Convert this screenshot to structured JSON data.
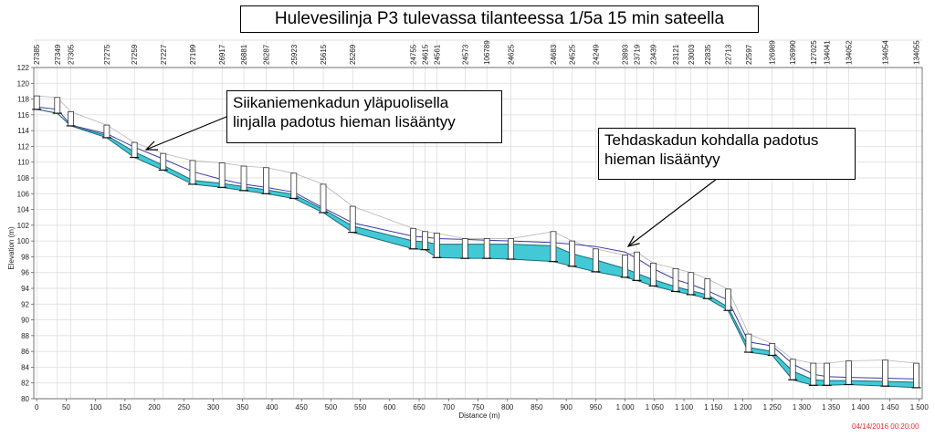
{
  "title": "Hulevesilinja P3 tulevassa tilanteessa 1/5a 15 min sateella",
  "callouts": [
    {
      "text": "Siikaniemenkadun yläpuolisella linjalla padotus hieman lisääntyy"
    },
    {
      "text": "Tehdaskadun kohdalla padotus hieman lisääntyy"
    }
  ],
  "timestamp": "04/14/2016 00:20:00",
  "colors": {
    "water": "#43c9d6",
    "pipe": "#1e6a78",
    "hgl": "#3a3aa8",
    "ground": "#b5b5b5",
    "grid": "#d9d9d9",
    "arrow": "#000000"
  },
  "chart_data": {
    "type": "line",
    "xlabel": "Distance (m)",
    "ylabel": "Elevation (m)",
    "xlim": [
      -5,
      1505
    ],
    "ylim": [
      80,
      122
    ],
    "x_ticks": [
      {
        "v": 0,
        "label": "0"
      },
      {
        "v": 50,
        "label": "50"
      },
      {
        "v": 100,
        "label": "100"
      },
      {
        "v": 150,
        "label": "150"
      },
      {
        "v": 200,
        "label": "200"
      },
      {
        "v": 250,
        "label": "250"
      },
      {
        "v": 300,
        "label": "300"
      },
      {
        "v": 350,
        "label": "350"
      },
      {
        "v": 400,
        "label": "400"
      },
      {
        "v": 450,
        "label": "450"
      },
      {
        "v": 500,
        "label": "500"
      },
      {
        "v": 550,
        "label": "550"
      },
      {
        "v": 600,
        "label": "600"
      },
      {
        "v": 650,
        "label": "650"
      },
      {
        "v": 700,
        "label": "700"
      },
      {
        "v": 750,
        "label": "750"
      },
      {
        "v": 800,
        "label": "800"
      },
      {
        "v": 850,
        "label": "850"
      },
      {
        "v": 900,
        "label": "900"
      },
      {
        "v": 950,
        "label": "950"
      },
      {
        "v": 1000,
        "label": "1 000"
      },
      {
        "v": 1050,
        "label": "1 050"
      },
      {
        "v": 1100,
        "label": "1 100"
      },
      {
        "v": 1150,
        "label": "1 150"
      },
      {
        "v": 1200,
        "label": "1 200"
      },
      {
        "v": 1250,
        "label": "1 250"
      },
      {
        "v": 1300,
        "label": "1 300"
      },
      {
        "v": 1350,
        "label": "1 350"
      },
      {
        "v": 1400,
        "label": "1 400"
      },
      {
        "v": 1450,
        "label": "1 450"
      },
      {
        "v": 1500,
        "label": "1 500"
      }
    ],
    "y_ticks": [
      80,
      82,
      84,
      86,
      88,
      90,
      92,
      94,
      96,
      98,
      100,
      102,
      104,
      106,
      108,
      110,
      112,
      114,
      116,
      118,
      120,
      122
    ],
    "nodes": [
      {
        "id": "27385",
        "x": 0
      },
      {
        "id": "27349",
        "x": 35
      },
      {
        "id": "27305",
        "x": 58
      },
      {
        "id": "27275",
        "x": 119
      },
      {
        "id": "27259",
        "x": 166
      },
      {
        "id": "27227",
        "x": 215
      },
      {
        "id": "27199",
        "x": 265
      },
      {
        "id": "26917",
        "x": 315
      },
      {
        "id": "26881",
        "x": 352
      },
      {
        "id": "26287",
        "x": 390
      },
      {
        "id": "25923",
        "x": 437
      },
      {
        "id": "25615",
        "x": 487
      },
      {
        "id": "25269",
        "x": 537
      },
      {
        "id": "24755",
        "x": 640
      },
      {
        "id": "24615",
        "x": 660
      },
      {
        "id": "24561",
        "x": 680
      },
      {
        "id": "24573",
        "x": 728
      },
      {
        "id": "106789",
        "x": 765
      },
      {
        "id": "24625",
        "x": 806
      },
      {
        "id": "24683",
        "x": 878
      },
      {
        "id": "24525",
        "x": 910
      },
      {
        "id": "24249",
        "x": 950
      },
      {
        "id": "23893",
        "x": 1000
      },
      {
        "id": "23719",
        "x": 1020
      },
      {
        "id": "23439",
        "x": 1048
      },
      {
        "id": "23121",
        "x": 1086
      },
      {
        "id": "23003",
        "x": 1112
      },
      {
        "id": "22835",
        "x": 1140
      },
      {
        "id": "22713",
        "x": 1175
      },
      {
        "id": "22597",
        "x": 1210
      },
      {
        "id": "126989",
        "x": 1250
      },
      {
        "id": "126990",
        "x": 1285
      },
      {
        "id": "127025",
        "x": 1320
      },
      {
        "id": "134041",
        "x": 1343
      },
      {
        "id": "134052",
        "x": 1380
      },
      {
        "id": "134054",
        "x": 1442
      },
      {
        "id": "134055",
        "x": 1495
      }
    ],
    "series": [
      {
        "points": [
          [
            0,
            116.7
          ],
          [
            35,
            116.2
          ],
          [
            58,
            114.6
          ],
          [
            119,
            113.1
          ],
          [
            166,
            110.6
          ],
          [
            215,
            109.0
          ],
          [
            265,
            107.2
          ],
          [
            315,
            106.8
          ],
          [
            352,
            106.4
          ],
          [
            390,
            106.0
          ],
          [
            437,
            105.4
          ],
          [
            487,
            103.6
          ],
          [
            537,
            101.1
          ],
          [
            640,
            99.0
          ],
          [
            660,
            98.9
          ],
          [
            680,
            97.9
          ],
          [
            728,
            97.8
          ],
          [
            765,
            97.8
          ],
          [
            806,
            97.7
          ],
          [
            878,
            97.4
          ],
          [
            910,
            96.8
          ],
          [
            950,
            96.1
          ],
          [
            1000,
            95.4
          ],
          [
            1020,
            95.0
          ],
          [
            1048,
            94.3
          ],
          [
            1086,
            93.6
          ],
          [
            1112,
            93.2
          ],
          [
            1140,
            92.7
          ],
          [
            1175,
            91.2
          ],
          [
            1210,
            85.9
          ],
          [
            1250,
            85.5
          ],
          [
            1285,
            82.4
          ],
          [
            1320,
            81.7
          ],
          [
            1343,
            81.7
          ],
          [
            1380,
            81.8
          ],
          [
            1442,
            81.6
          ],
          [
            1495,
            81.4
          ]
        ]
      },
      {
        "points": [
          [
            0,
            116.7
          ],
          [
            35,
            116.2
          ],
          [
            58,
            114.6
          ],
          [
            119,
            113.4
          ],
          [
            166,
            111.3
          ],
          [
            215,
            109.6
          ],
          [
            265,
            107.7
          ],
          [
            315,
            107.3
          ],
          [
            352,
            106.9
          ],
          [
            390,
            106.5
          ],
          [
            437,
            105.9
          ],
          [
            487,
            104.0
          ],
          [
            537,
            101.9
          ],
          [
            640,
            100.0
          ],
          [
            660,
            99.9
          ],
          [
            680,
            99.6
          ],
          [
            728,
            99.6
          ],
          [
            765,
            99.6
          ],
          [
            806,
            99.6
          ],
          [
            878,
            99.4
          ],
          [
            910,
            98.4
          ],
          [
            950,
            97.6
          ],
          [
            1000,
            96.5
          ],
          [
            1020,
            95.9
          ],
          [
            1048,
            95.1
          ],
          [
            1086,
            94.2
          ],
          [
            1112,
            93.7
          ],
          [
            1140,
            93.2
          ],
          [
            1175,
            91.6
          ],
          [
            1210,
            86.5
          ],
          [
            1250,
            86.0
          ],
          [
            1285,
            83.5
          ],
          [
            1320,
            82.4
          ],
          [
            1343,
            82.3
          ],
          [
            1380,
            82.3
          ],
          [
            1442,
            82.2
          ],
          [
            1495,
            82.1
          ]
        ]
      },
      {
        "points": [
          [
            0,
            117.0
          ],
          [
            35,
            116.7
          ],
          [
            58,
            114.7
          ],
          [
            119,
            113.6
          ],
          [
            166,
            111.9
          ],
          [
            215,
            110.4
          ],
          [
            265,
            108.8
          ],
          [
            315,
            107.8
          ],
          [
            352,
            107.2
          ],
          [
            390,
            106.8
          ],
          [
            437,
            106.2
          ],
          [
            487,
            104.2
          ],
          [
            537,
            102.3
          ],
          [
            640,
            100.6
          ],
          [
            660,
            100.5
          ],
          [
            680,
            100.3
          ],
          [
            728,
            100.2
          ],
          [
            765,
            100.1
          ],
          [
            806,
            100.0
          ],
          [
            878,
            99.8
          ],
          [
            910,
            99.6
          ],
          [
            950,
            99.3
          ],
          [
            1000,
            98.6
          ],
          [
            1020,
            97.8
          ],
          [
            1048,
            96.5
          ],
          [
            1086,
            95.1
          ],
          [
            1112,
            94.5
          ],
          [
            1140,
            93.7
          ],
          [
            1175,
            92.5
          ],
          [
            1210,
            87.2
          ],
          [
            1250,
            86.7
          ],
          [
            1285,
            84.4
          ],
          [
            1320,
            83.1
          ],
          [
            1343,
            82.8
          ],
          [
            1380,
            82.7
          ],
          [
            1442,
            82.6
          ],
          [
            1495,
            82.5
          ]
        ]
      },
      {
        "points": [
          [
            0,
            118.4
          ],
          [
            35,
            118.2
          ],
          [
            58,
            116.4
          ],
          [
            119,
            114.7
          ],
          [
            166,
            112.5
          ],
          [
            215,
            111.1
          ],
          [
            265,
            110.2
          ],
          [
            315,
            109.9
          ],
          [
            352,
            109.5
          ],
          [
            390,
            109.3
          ],
          [
            437,
            108.6
          ],
          [
            487,
            107.2
          ],
          [
            537,
            104.4
          ],
          [
            640,
            101.6
          ],
          [
            660,
            101.2
          ],
          [
            680,
            101.0
          ],
          [
            728,
            100.3
          ],
          [
            765,
            100.3
          ],
          [
            806,
            100.3
          ],
          [
            878,
            101.2
          ],
          [
            910,
            100.0
          ],
          [
            950,
            99.0
          ],
          [
            1000,
            98.2
          ],
          [
            1020,
            98.6
          ],
          [
            1048,
            97.2
          ],
          [
            1086,
            96.5
          ],
          [
            1112,
            96.0
          ],
          [
            1140,
            95.2
          ],
          [
            1175,
            93.9
          ],
          [
            1210,
            88.2
          ],
          [
            1250,
            87.0
          ],
          [
            1285,
            85.0
          ],
          [
            1320,
            84.5
          ],
          [
            1343,
            84.5
          ],
          [
            1380,
            84.8
          ],
          [
            1442,
            84.9
          ],
          [
            1495,
            84.5
          ]
        ]
      }
    ]
  }
}
